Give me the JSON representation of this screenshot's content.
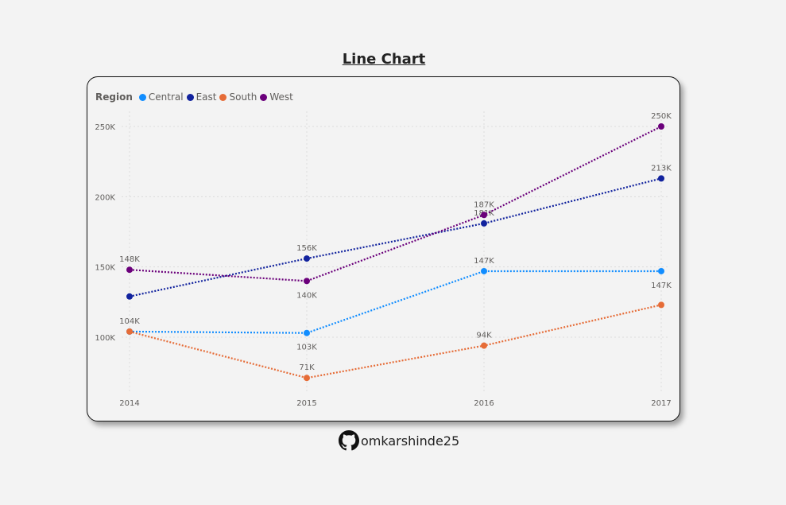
{
  "page_title": "Line Chart",
  "footer": {
    "username": "omkarshinde25",
    "icon": "github-icon"
  },
  "chart_data": {
    "type": "line",
    "legend_title": "Region",
    "legend_position": "top-left",
    "categories": [
      "2014",
      "2015",
      "2016",
      "2017"
    ],
    "y_ticks": [
      {
        "value": 100000,
        "label": "100K"
      },
      {
        "value": 150000,
        "label": "150K"
      },
      {
        "value": 200000,
        "label": "200K"
      },
      {
        "value": 250000,
        "label": "250K"
      }
    ],
    "ylim": [
      70000,
      250000
    ],
    "grid": true,
    "line_style": "dotted",
    "series": [
      {
        "name": "Central",
        "color": "#118dff",
        "values": [
          104000,
          103000,
          147000,
          147000
        ],
        "labels": [
          "",
          "103K",
          "147K",
          "147K"
        ]
      },
      {
        "name": "East",
        "color": "#12239e",
        "values": [
          129000,
          156000,
          181000,
          213000
        ],
        "labels": [
          "",
          "156K",
          "181K",
          "213K"
        ]
      },
      {
        "name": "South",
        "color": "#e66c37",
        "values": [
          104000,
          71000,
          94000,
          123000
        ],
        "labels": [
          "104K",
          "71K",
          "94K",
          ""
        ]
      },
      {
        "name": "West",
        "color": "#6b007b",
        "values": [
          148000,
          140000,
          187000,
          250000
        ],
        "labels": [
          "148K",
          "140K",
          "187K",
          "250K"
        ]
      }
    ]
  }
}
